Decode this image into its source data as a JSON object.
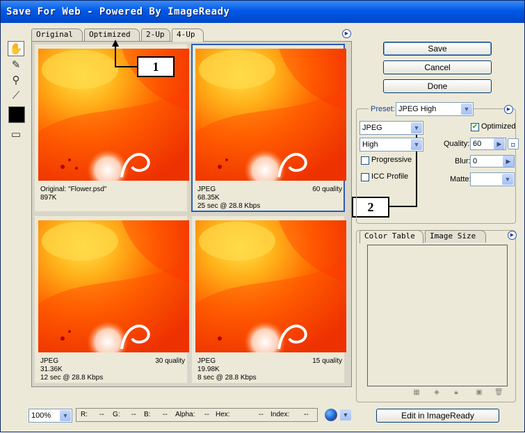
{
  "window": {
    "title": "Save For Web - Powered By ImageReady"
  },
  "tabs": [
    {
      "label": "Original"
    },
    {
      "label": "Optimized"
    },
    {
      "label": "2-Up"
    },
    {
      "label": "4-Up"
    }
  ],
  "active_tab": "4-Up",
  "panes": [
    {
      "line1": "Original: \"Flower.psd\"",
      "line2": "897K",
      "line3": "",
      "quality": ""
    },
    {
      "line1": "JPEG",
      "line2": "68.35K",
      "line3": "25 sec @ 28.8 Kbps",
      "quality": "60 quality"
    },
    {
      "line1": "JPEG",
      "line2": "31.36K",
      "line3": "12 sec @ 28.8 Kbps",
      "quality": "30 quality"
    },
    {
      "line1": "JPEG",
      "line2": "19.98K",
      "line3": "8 sec @ 28.8 Kbps",
      "quality": "15 quality"
    }
  ],
  "callouts": {
    "one": "1",
    "two": "2"
  },
  "buttons": {
    "save": "Save",
    "cancel": "Cancel",
    "done": "Done",
    "edit_imageready": "Edit in ImageReady"
  },
  "settings": {
    "preset_label": "Preset:",
    "preset_value": "JPEG High",
    "format_value": "JPEG",
    "quality_level_value": "High",
    "optimized_label": "Optimized",
    "progressive_label": "Progressive",
    "icc_label": "ICC Profile",
    "quality_label": "Quality:",
    "quality_value": "60",
    "blur_label": "Blur:",
    "blur_value": "0",
    "matte_label": "Matte:"
  },
  "panel_tabs": {
    "color_table": "Color Table",
    "image_size": "Image Size"
  },
  "status": {
    "zoom": "100%",
    "r_label": "R:",
    "r_value": "--",
    "g_label": "G:",
    "g_value": "--",
    "b_label": "B:",
    "b_value": "--",
    "alpha_label": "Alpha:",
    "alpha_value": "--",
    "hex_label": "Hex:",
    "hex_value": "--",
    "index_label": "Index:",
    "index_value": "--"
  },
  "colors": {
    "selection": "#2e5cb8",
    "title_bar": "#0058e6"
  },
  "icons": [
    "hand-icon",
    "slice-select-icon",
    "zoom-icon",
    "eyedropper-icon",
    "toggle-slices-icon",
    "browser-preview-icon"
  ]
}
